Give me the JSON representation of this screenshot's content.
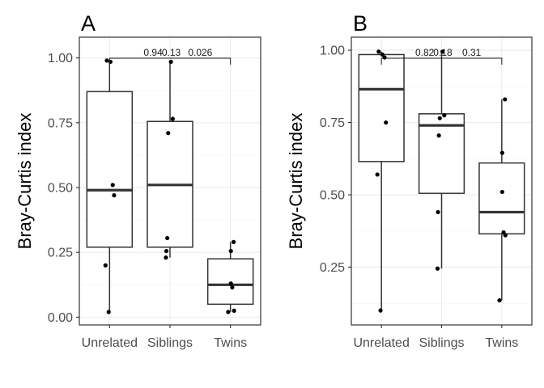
{
  "chart_data": [
    {
      "type": "box",
      "panel": "A",
      "ylabel": "Bray-Curtis index",
      "categories": [
        "Unrelated",
        "Siblings",
        "Twins"
      ],
      "ylim": [
        -0.03,
        1.08
      ],
      "yticks": [
        "0.00",
        "0.25",
        "0.50",
        "0.75",
        "1.00"
      ],
      "ytick_values": [
        0.0,
        0.25,
        0.5,
        0.75,
        1.0
      ],
      "grid": true,
      "boxes": [
        {
          "min": 0.02,
          "q1": 0.27,
          "median": 0.49,
          "q3": 0.87,
          "max": 0.99
        },
        {
          "min": 0.23,
          "q1": 0.27,
          "median": 0.51,
          "q3": 0.755,
          "max": 0.99
        },
        {
          "min": 0.02,
          "q1": 0.05,
          "median": 0.125,
          "q3": 0.225,
          "max": 0.29
        }
      ],
      "points": [
        [
          0.99,
          0.985,
          0.51,
          0.47,
          0.2,
          0.02
        ],
        [
          0.985,
          0.765,
          0.71,
          0.305,
          0.255,
          0.23
        ],
        [
          0.29,
          0.255,
          0.13,
          0.115,
          0.025,
          0.02
        ]
      ],
      "comparisons": [
        "0.94",
        "0.13",
        "0.026"
      ]
    },
    {
      "type": "box",
      "panel": "B",
      "ylabel": "Bray-Curtis index",
      "categories": [
        "Unrelated",
        "Siblings",
        "Twins"
      ],
      "ylim": [
        0.05,
        1.045
      ],
      "yticks": [
        "0.25",
        "0.50",
        "0.75",
        "1.00"
      ],
      "ytick_values": [
        0.25,
        0.5,
        0.75,
        1.0
      ],
      "grid": true,
      "boxes": [
        {
          "min": 0.1,
          "q1": 0.615,
          "median": 0.865,
          "q3": 0.985,
          "max": 0.995
        },
        {
          "min": 0.245,
          "q1": 0.505,
          "median": 0.74,
          "q3": 0.78,
          "max": 0.995
        },
        {
          "min": 0.135,
          "q1": 0.365,
          "median": 0.44,
          "q3": 0.61,
          "max": 0.83
        }
      ],
      "points": [
        [
          0.995,
          0.985,
          0.975,
          0.75,
          0.57,
          0.1
        ],
        [
          0.995,
          0.775,
          0.765,
          0.705,
          0.44,
          0.245
        ],
        [
          0.83,
          0.645,
          0.51,
          0.37,
          0.36,
          0.135
        ]
      ],
      "comparisons": [
        "0.82",
        "0.18",
        "0.31"
      ]
    }
  ]
}
